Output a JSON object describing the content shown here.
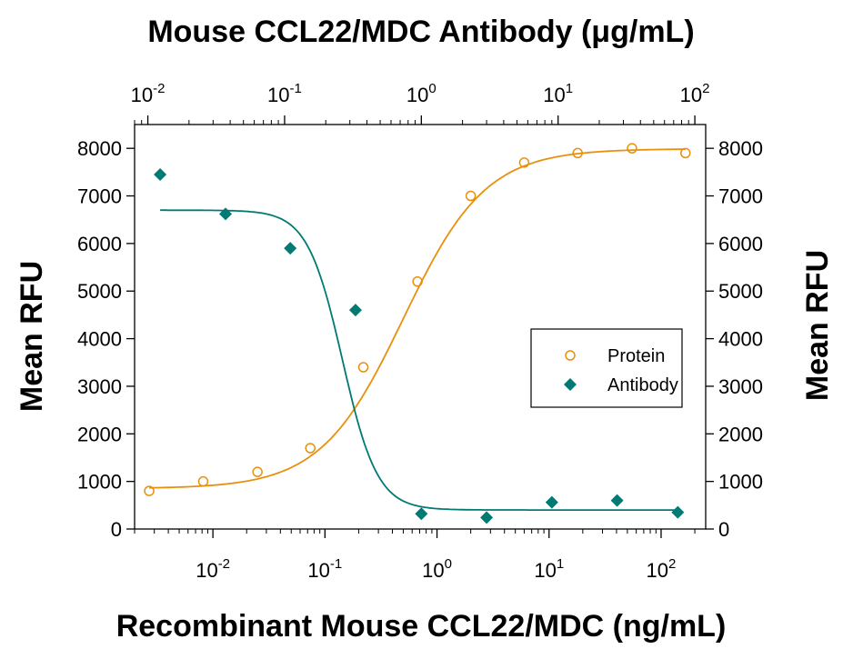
{
  "chart_data": {
    "type": "scatter",
    "title": "Mouse CCL22/MDC Antibody (μg/mL)",
    "xlabel": "Recombinant Mouse CCL22/MDC (ng/mL)",
    "ylabel": "Mean RFU",
    "ylabel_right": "Mean RFU",
    "x_scale": "log",
    "xlim": [
      0.002,
      250
    ],
    "ylim": [
      0,
      8500
    ],
    "yticks": [
      0,
      1000,
      2000,
      3000,
      4000,
      5000,
      6000,
      7000,
      8000
    ],
    "xticks": [
      {
        "base": "10",
        "exp": "-2",
        "value": 0.01
      },
      {
        "base": "10",
        "exp": "-1",
        "value": 0.1
      },
      {
        "base": "10",
        "exp": "0",
        "value": 1
      },
      {
        "base": "10",
        "exp": "1",
        "value": 10
      },
      {
        "base": "10",
        "exp": "2",
        "value": 100
      }
    ],
    "top_axis": {
      "x_scale": "log",
      "xlim": [
        0.008,
        120
      ],
      "xticks": [
        {
          "base": "10",
          "exp": "-2",
          "value": 0.01
        },
        {
          "base": "10",
          "exp": "-1",
          "value": 0.1
        },
        {
          "base": "10",
          "exp": "0",
          "value": 1
        },
        {
          "base": "10",
          "exp": "1",
          "value": 10
        },
        {
          "base": "10",
          "exp": "2",
          "value": 100
        }
      ]
    },
    "legend_position": "right",
    "series": [
      {
        "name": "Protein",
        "marker": "open-circle",
        "color": "#E8900E",
        "axis": "bottom",
        "x": [
          0.0027,
          0.0082,
          0.025,
          0.074,
          0.22,
          0.67,
          2.0,
          6.0,
          18.0,
          55.0,
          165.0
        ],
        "y": [
          800,
          1000,
          1200,
          1700,
          3400,
          5200,
          7000,
          7700,
          7900,
          8000,
          7900
        ]
      },
      {
        "name": "Antibody",
        "marker": "filled-diamond",
        "color": "#007A73",
        "axis": "top",
        "x": [
          0.0123,
          0.037,
          0.11,
          0.33,
          1.0,
          3.0,
          9.0,
          27.0,
          75.0
        ],
        "y": [
          7450,
          6620,
          5900,
          4600,
          320,
          240,
          560,
          600,
          350
        ]
      }
    ]
  }
}
